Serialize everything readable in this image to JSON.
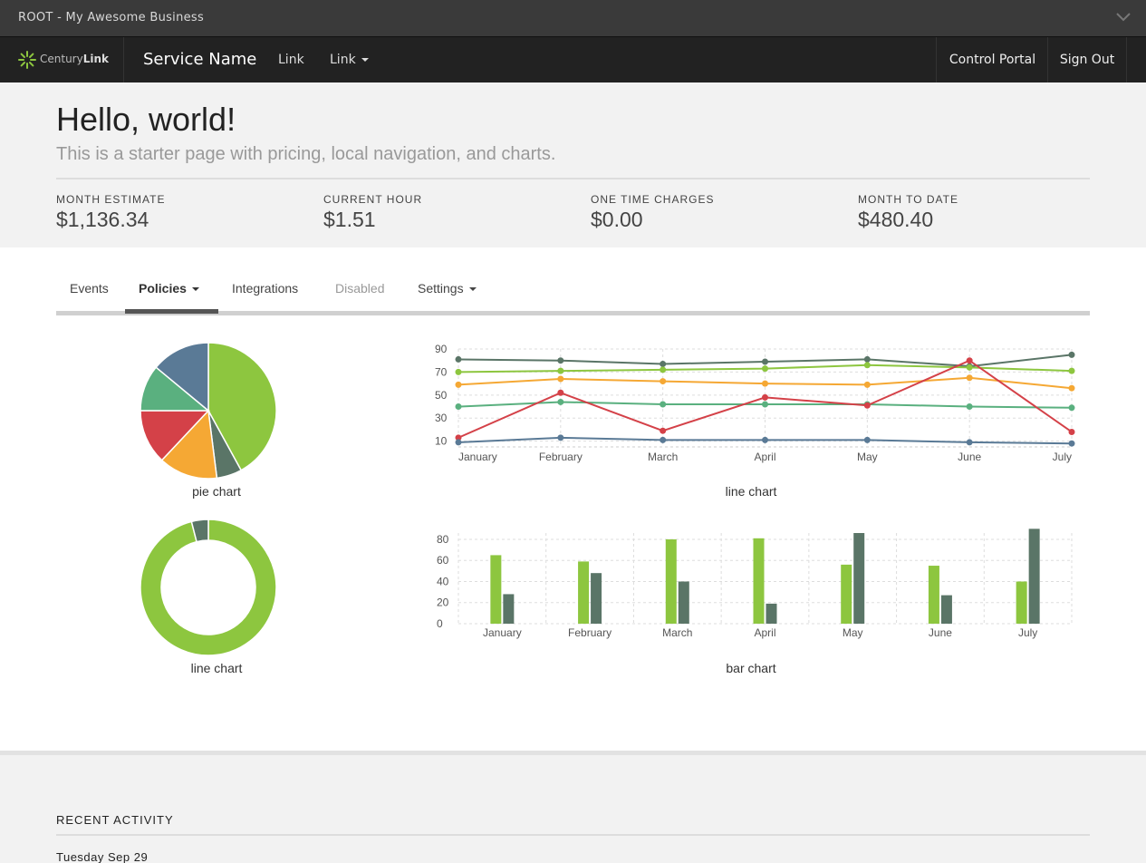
{
  "window": {
    "title": "ROOT - My Awesome Business"
  },
  "navbar": {
    "brand_light": "Century",
    "brand_bold": "Link",
    "service_name": "Service Name",
    "links": [
      "Link",
      "Link"
    ],
    "right": [
      "Control Portal",
      "Sign Out"
    ]
  },
  "hero": {
    "title": "Hello, world!",
    "lead": "This is a starter page with pricing, local navigation, and charts.",
    "stats": [
      {
        "label": "MONTH ESTIMATE",
        "value": "$1,136.34"
      },
      {
        "label": "CURRENT HOUR",
        "value": "$1.51"
      },
      {
        "label": "ONE TIME CHARGES",
        "value": "$0.00"
      },
      {
        "label": "MONTH TO DATE",
        "value": "$480.40"
      }
    ]
  },
  "tabs": [
    {
      "label": "Events",
      "state": "normal"
    },
    {
      "label": "Policies",
      "state": "active"
    },
    {
      "label": "Integrations",
      "state": "normal"
    },
    {
      "label": "Disabled",
      "state": "disabled"
    },
    {
      "label": "Settings",
      "state": "normal"
    }
  ],
  "colors": {
    "green": "#8dc63f",
    "darkgreen": "#5a7567",
    "orange": "#f5a834",
    "red": "#d44148",
    "teal": "#5ab07f",
    "blue": "#5a7a96"
  },
  "chart_data": [
    {
      "type": "pie",
      "caption": "pie chart",
      "slices": [
        {
          "value": 42,
          "color": "#8dc63f"
        },
        {
          "value": 6,
          "color": "#5a7567"
        },
        {
          "value": 14,
          "color": "#f5a834"
        },
        {
          "value": 13,
          "color": "#d44148"
        },
        {
          "value": 11,
          "color": "#5ab07f"
        },
        {
          "value": 14,
          "color": "#5a7a96"
        }
      ]
    },
    {
      "type": "pie",
      "variant": "donut",
      "caption": "line chart",
      "slices": [
        {
          "value": 96,
          "color": "#8dc63f"
        },
        {
          "value": 4,
          "color": "#5a7567"
        }
      ]
    },
    {
      "type": "line",
      "caption": "line chart",
      "categories": [
        "January",
        "February",
        "March",
        "April",
        "May",
        "June",
        "July"
      ],
      "yticks": [
        10,
        30,
        50,
        70,
        90
      ],
      "ylim": [
        5,
        90
      ],
      "series": [
        {
          "color": "#5a7567",
          "values": [
            81,
            80,
            77,
            79,
            81,
            75,
            85
          ]
        },
        {
          "color": "#8dc63f",
          "values": [
            70,
            71,
            72,
            73,
            76,
            74,
            71
          ]
        },
        {
          "color": "#f5a834",
          "values": [
            59,
            64,
            62,
            60,
            59,
            65,
            56
          ]
        },
        {
          "color": "#5ab07f",
          "values": [
            40,
            44,
            42,
            42,
            42,
            40,
            39
          ]
        },
        {
          "color": "#d44148",
          "values": [
            13,
            52,
            19,
            48,
            41,
            80,
            18
          ]
        },
        {
          "color": "#5a7a96",
          "values": [
            9,
            13,
            11,
            11,
            11,
            9,
            8
          ]
        }
      ]
    },
    {
      "type": "bar",
      "caption": "bar chart",
      "categories": [
        "January",
        "February",
        "March",
        "April",
        "May",
        "June",
        "July"
      ],
      "yticks": [
        0,
        20,
        40,
        60,
        80
      ],
      "ylim": [
        0,
        86
      ],
      "series": [
        {
          "color": "#8dc63f",
          "values": [
            65,
            59,
            80,
            81,
            56,
            55,
            40
          ]
        },
        {
          "color": "#5a7567",
          "values": [
            28,
            48,
            40,
            19,
            86,
            27,
            90
          ]
        }
      ]
    }
  ],
  "footer": {
    "section": "RECENT ACTIVITY",
    "date": "Tuesday Sep 29"
  }
}
